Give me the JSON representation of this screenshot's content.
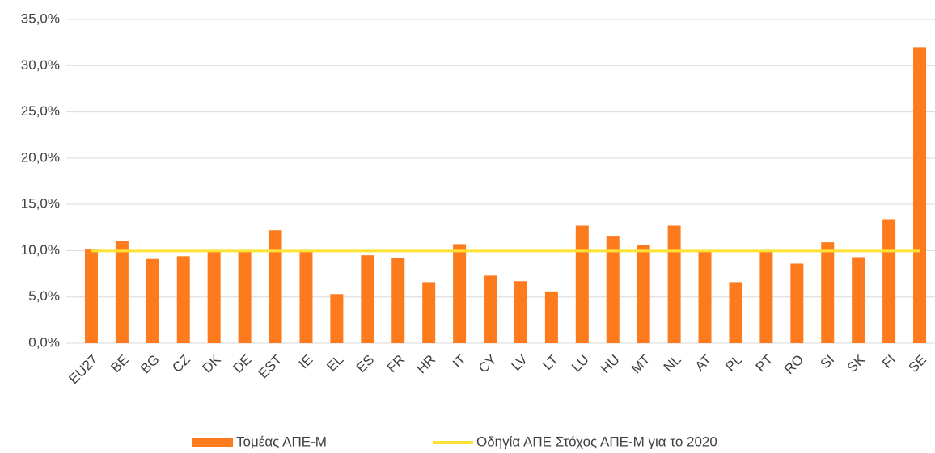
{
  "chart_data": {
    "type": "bar",
    "categories": [
      "EU27",
      "BE",
      "BG",
      "CZ",
      "DK",
      "DE",
      "EST",
      "IE",
      "EL",
      "ES",
      "FR",
      "HR",
      "IT",
      "CY",
      "LV",
      "LT",
      "LU",
      "HU",
      "MT",
      "NL",
      "AT",
      "PL",
      "PT",
      "RO",
      "SI",
      "SK",
      "FI",
      "SE"
    ],
    "series": [
      {
        "name": "Τομέας ΑΠΕ-Μ",
        "type": "bar",
        "color": "#fd7b1c",
        "values": [
          10.2,
          11.0,
          9.1,
          9.4,
          9.9,
          9.9,
          12.2,
          9.9,
          5.3,
          9.5,
          9.2,
          6.6,
          10.7,
          7.3,
          6.7,
          5.6,
          12.7,
          11.6,
          10.6,
          12.7,
          10.0,
          6.6,
          10.0,
          8.6,
          10.9,
          9.3,
          13.4,
          32.0
        ]
      },
      {
        "name": "Οδηγία ΑΠΕ Στόχος ΑΠΕ-Μ για το 2020",
        "type": "line",
        "color": "#fde233",
        "values": [
          10,
          10,
          10,
          10,
          10,
          10,
          10,
          10,
          10,
          10,
          10,
          10,
          10,
          10,
          10,
          10,
          10,
          10,
          10,
          10,
          10,
          10,
          10,
          10,
          10,
          10,
          10,
          10
        ]
      }
    ],
    "ylim": [
      0,
      35
    ],
    "yticks": [
      {
        "value": 0,
        "label": "0,0%"
      },
      {
        "value": 5,
        "label": "5,0%"
      },
      {
        "value": 10,
        "label": "10,0%"
      },
      {
        "value": 15,
        "label": "15,0%"
      },
      {
        "value": 20,
        "label": "20,0%"
      },
      {
        "value": 25,
        "label": "25,0%"
      },
      {
        "value": 30,
        "label": "30,0%"
      },
      {
        "value": 35,
        "label": "35,0%"
      }
    ],
    "grid": true,
    "legend": "bottom"
  }
}
